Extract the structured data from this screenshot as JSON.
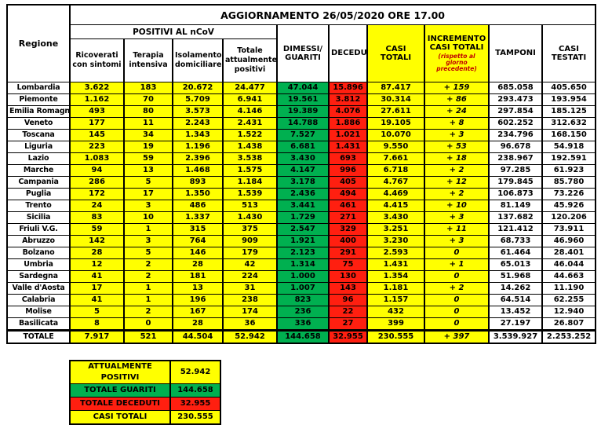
{
  "title": "AGGIORNAMENTO 26/05/2020 ORE 17.00",
  "header": {
    "region_label": "Regione",
    "positivi_group": "POSITIVI AL nCoV",
    "sub_columns": [
      "Ricoverati con sintomi",
      "Terapia intensiva",
      "Isolamento domiciliare",
      "Totale attualmente positivi"
    ],
    "dimessi_line1": "DIMESSI/",
    "dimessi_line2": "GUARITI",
    "deceduti": "DECEDUTI",
    "casi_totali": "CASI TOTALI",
    "incremento_line1": "INCREMENTO",
    "incremento_line2": "CASI  TOTALI",
    "incremento_note": "(rispetto al giorno precedente)",
    "tamponi": "TAMPONI",
    "casi_testati": "CASI TESTATI"
  },
  "chart_data": {
    "type": "table",
    "title": "AGGIORNAMENTO 26/05/2020 ORE 17.00",
    "columns": [
      "Regione",
      "Ricoverati con sintomi",
      "Terapia intensiva",
      "Isolamento domiciliare",
      "Totale attualmente positivi",
      "Dimessi/Guariti",
      "Deceduti",
      "Casi totali",
      "Incremento casi totali (rispetto al giorno precedente)",
      "Tamponi",
      "Casi testati"
    ],
    "rows": [
      {
        "region": "Lombardia",
        "values": [
          "3.622",
          "183",
          "20.672",
          "24.477",
          "47.044",
          "15.896",
          "87.417",
          "+ 159",
          "685.058",
          "405.650"
        ]
      },
      {
        "region": "Piemonte",
        "values": [
          "1.162",
          "70",
          "5.709",
          "6.941",
          "19.561",
          "3.812",
          "30.314",
          "+ 86",
          "293.473",
          "193.954"
        ]
      },
      {
        "region": "Emilia Romagna",
        "values": [
          "493",
          "80",
          "3.573",
          "4.146",
          "19.389",
          "4.076",
          "27.611",
          "+ 24",
          "297.854",
          "185.125"
        ]
      },
      {
        "region": "Veneto",
        "values": [
          "177",
          "11",
          "2.243",
          "2.431",
          "14.788",
          "1.886",
          "19.105",
          "+ 8",
          "602.252",
          "312.632"
        ]
      },
      {
        "region": "Toscana",
        "values": [
          "145",
          "34",
          "1.343",
          "1.522",
          "7.527",
          "1.021",
          "10.070",
          "+ 3",
          "234.796",
          "168.150"
        ]
      },
      {
        "region": "Liguria",
        "values": [
          "223",
          "19",
          "1.196",
          "1.438",
          "6.681",
          "1.431",
          "9.550",
          "+ 53",
          "96.678",
          "54.918"
        ]
      },
      {
        "region": "Lazio",
        "values": [
          "1.083",
          "59",
          "2.396",
          "3.538",
          "3.430",
          "693",
          "7.661",
          "+ 18",
          "238.967",
          "192.591"
        ]
      },
      {
        "region": "Marche",
        "values": [
          "94",
          "13",
          "1.468",
          "1.575",
          "4.147",
          "996",
          "6.718",
          "+ 2",
          "97.285",
          "61.923"
        ]
      },
      {
        "region": "Campania",
        "values": [
          "286",
          "5",
          "893",
          "1.184",
          "3.178",
          "405",
          "4.767",
          "+ 12",
          "179.845",
          "85.780"
        ]
      },
      {
        "region": "Puglia",
        "values": [
          "172",
          "17",
          "1.350",
          "1.539",
          "2.436",
          "494",
          "4.469",
          "+ 2",
          "106.873",
          "73.226"
        ]
      },
      {
        "region": "Trento",
        "values": [
          "24",
          "3",
          "486",
          "513",
          "3.441",
          "461",
          "4.415",
          "+ 10",
          "81.149",
          "45.926"
        ]
      },
      {
        "region": "Sicilia",
        "values": [
          "83",
          "10",
          "1.337",
          "1.430",
          "1.729",
          "271",
          "3.430",
          "+ 3",
          "137.682",
          "120.206"
        ]
      },
      {
        "region": "Friuli V.G.",
        "values": [
          "59",
          "1",
          "315",
          "375",
          "2.547",
          "329",
          "3.251",
          "+ 11",
          "121.412",
          "73.911"
        ]
      },
      {
        "region": "Abruzzo",
        "values": [
          "142",
          "3",
          "764",
          "909",
          "1.921",
          "400",
          "3.230",
          "+ 3",
          "68.733",
          "46.960"
        ]
      },
      {
        "region": "Bolzano",
        "values": [
          "28",
          "5",
          "146",
          "179",
          "2.123",
          "291",
          "2.593",
          "0",
          "61.464",
          "28.401"
        ]
      },
      {
        "region": "Umbria",
        "values": [
          "12",
          "2",
          "28",
          "42",
          "1.314",
          "75",
          "1.431",
          "+ 1",
          "65.013",
          "46.044"
        ]
      },
      {
        "region": "Sardegna",
        "values": [
          "41",
          "2",
          "181",
          "224",
          "1.000",
          "130",
          "1.354",
          "0",
          "51.968",
          "44.663"
        ]
      },
      {
        "region": "Valle d'Aosta",
        "values": [
          "17",
          "1",
          "13",
          "31",
          "1.007",
          "143",
          "1.181",
          "+ 2",
          "14.262",
          "11.190"
        ]
      },
      {
        "region": "Calabria",
        "values": [
          "41",
          "1",
          "196",
          "238",
          "823",
          "96",
          "1.157",
          "0",
          "64.514",
          "62.255"
        ]
      },
      {
        "region": "Molise",
        "values": [
          "5",
          "2",
          "167",
          "174",
          "236",
          "22",
          "432",
          "0",
          "13.452",
          "12.940"
        ]
      },
      {
        "region": "Basilicata",
        "values": [
          "8",
          "0",
          "28",
          "36",
          "336",
          "27",
          "399",
          "0",
          "27.197",
          "26.807"
        ]
      }
    ],
    "totale": {
      "region": "TOTALE",
      "values": [
        "7.917",
        "521",
        "44.504",
        "52.942",
        "144.658",
        "32.955",
        "230.555",
        "+ 397",
        "3.539.927",
        "2.253.252"
      ]
    }
  },
  "summary": [
    {
      "label": "ATTUALMENTE POSITIVI",
      "value": "52.942",
      "color": "yellow"
    },
    {
      "label": "TOTALE GUARITI",
      "value": "144.658",
      "color": "green"
    },
    {
      "label": "TOTALE DECEDUTI",
      "value": "32.955",
      "color": "red"
    },
    {
      "label": "CASI TOTALI",
      "value": "230.555",
      "color": "yellow"
    }
  ],
  "colors": {
    "yellow": "#ffff00",
    "green": "#00b050",
    "red": "#ff1f10",
    "note_red": "#c00000",
    "border": "#000000"
  }
}
